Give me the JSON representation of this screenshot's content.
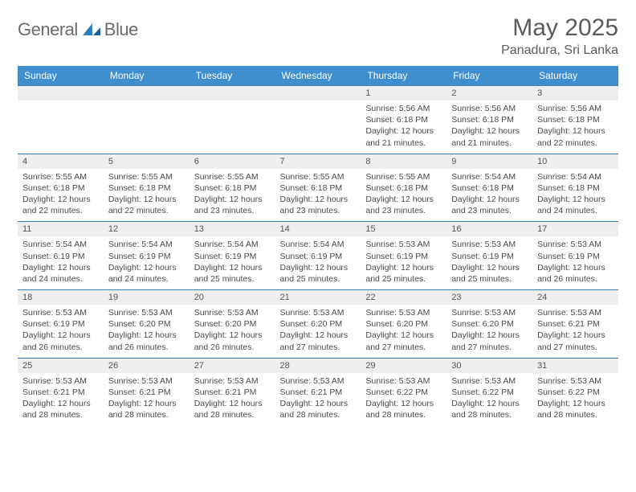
{
  "logo": {
    "word1": "General",
    "word2": "Blue"
  },
  "title": "May 2025",
  "location": "Panadura, Sri Lanka",
  "colors": {
    "header_bg": "#3f8fcf",
    "header_text": "#ffffff",
    "numrow_bg": "#eeeeee",
    "divider": "#3a7db3",
    "body_text": "#4a4a4a",
    "title_text": "#5b5b5b",
    "logo_gray": "#6b6b6b",
    "logo_blue": "#2f7fbf"
  },
  "day_headers": [
    "Sunday",
    "Monday",
    "Tuesday",
    "Wednesday",
    "Thursday",
    "Friday",
    "Saturday"
  ],
  "weeks": [
    {
      "nums": [
        "",
        "",
        "",
        "",
        "1",
        "2",
        "3"
      ],
      "cells": [
        null,
        null,
        null,
        null,
        {
          "sunrise": "5:56 AM",
          "sunset": "6:18 PM",
          "daylight": "12 hours and 21 minutes."
        },
        {
          "sunrise": "5:56 AM",
          "sunset": "6:18 PM",
          "daylight": "12 hours and 21 minutes."
        },
        {
          "sunrise": "5:56 AM",
          "sunset": "6:18 PM",
          "daylight": "12 hours and 22 minutes."
        }
      ]
    },
    {
      "nums": [
        "4",
        "5",
        "6",
        "7",
        "8",
        "9",
        "10"
      ],
      "cells": [
        {
          "sunrise": "5:55 AM",
          "sunset": "6:18 PM",
          "daylight": "12 hours and 22 minutes."
        },
        {
          "sunrise": "5:55 AM",
          "sunset": "6:18 PM",
          "daylight": "12 hours and 22 minutes."
        },
        {
          "sunrise": "5:55 AM",
          "sunset": "6:18 PM",
          "daylight": "12 hours and 23 minutes."
        },
        {
          "sunrise": "5:55 AM",
          "sunset": "6:18 PM",
          "daylight": "12 hours and 23 minutes."
        },
        {
          "sunrise": "5:55 AM",
          "sunset": "6:18 PM",
          "daylight": "12 hours and 23 minutes."
        },
        {
          "sunrise": "5:54 AM",
          "sunset": "6:18 PM",
          "daylight": "12 hours and 23 minutes."
        },
        {
          "sunrise": "5:54 AM",
          "sunset": "6:18 PM",
          "daylight": "12 hours and 24 minutes."
        }
      ]
    },
    {
      "nums": [
        "11",
        "12",
        "13",
        "14",
        "15",
        "16",
        "17"
      ],
      "cells": [
        {
          "sunrise": "5:54 AM",
          "sunset": "6:19 PM",
          "daylight": "12 hours and 24 minutes."
        },
        {
          "sunrise": "5:54 AM",
          "sunset": "6:19 PM",
          "daylight": "12 hours and 24 minutes."
        },
        {
          "sunrise": "5:54 AM",
          "sunset": "6:19 PM",
          "daylight": "12 hours and 25 minutes."
        },
        {
          "sunrise": "5:54 AM",
          "sunset": "6:19 PM",
          "daylight": "12 hours and 25 minutes."
        },
        {
          "sunrise": "5:53 AM",
          "sunset": "6:19 PM",
          "daylight": "12 hours and 25 minutes."
        },
        {
          "sunrise": "5:53 AM",
          "sunset": "6:19 PM",
          "daylight": "12 hours and 25 minutes."
        },
        {
          "sunrise": "5:53 AM",
          "sunset": "6:19 PM",
          "daylight": "12 hours and 26 minutes."
        }
      ]
    },
    {
      "nums": [
        "18",
        "19",
        "20",
        "21",
        "22",
        "23",
        "24"
      ],
      "cells": [
        {
          "sunrise": "5:53 AM",
          "sunset": "6:19 PM",
          "daylight": "12 hours and 26 minutes."
        },
        {
          "sunrise": "5:53 AM",
          "sunset": "6:20 PM",
          "daylight": "12 hours and 26 minutes."
        },
        {
          "sunrise": "5:53 AM",
          "sunset": "6:20 PM",
          "daylight": "12 hours and 26 minutes."
        },
        {
          "sunrise": "5:53 AM",
          "sunset": "6:20 PM",
          "daylight": "12 hours and 27 minutes."
        },
        {
          "sunrise": "5:53 AM",
          "sunset": "6:20 PM",
          "daylight": "12 hours and 27 minutes."
        },
        {
          "sunrise": "5:53 AM",
          "sunset": "6:20 PM",
          "daylight": "12 hours and 27 minutes."
        },
        {
          "sunrise": "5:53 AM",
          "sunset": "6:21 PM",
          "daylight": "12 hours and 27 minutes."
        }
      ]
    },
    {
      "nums": [
        "25",
        "26",
        "27",
        "28",
        "29",
        "30",
        "31"
      ],
      "cells": [
        {
          "sunrise": "5:53 AM",
          "sunset": "6:21 PM",
          "daylight": "12 hours and 28 minutes."
        },
        {
          "sunrise": "5:53 AM",
          "sunset": "6:21 PM",
          "daylight": "12 hours and 28 minutes."
        },
        {
          "sunrise": "5:53 AM",
          "sunset": "6:21 PM",
          "daylight": "12 hours and 28 minutes."
        },
        {
          "sunrise": "5:53 AM",
          "sunset": "6:21 PM",
          "daylight": "12 hours and 28 minutes."
        },
        {
          "sunrise": "5:53 AM",
          "sunset": "6:22 PM",
          "daylight": "12 hours and 28 minutes."
        },
        {
          "sunrise": "5:53 AM",
          "sunset": "6:22 PM",
          "daylight": "12 hours and 28 minutes."
        },
        {
          "sunrise": "5:53 AM",
          "sunset": "6:22 PM",
          "daylight": "12 hours and 28 minutes."
        }
      ]
    }
  ],
  "labels": {
    "sunrise": "Sunrise:",
    "sunset": "Sunset:",
    "daylight": "Daylight:"
  }
}
